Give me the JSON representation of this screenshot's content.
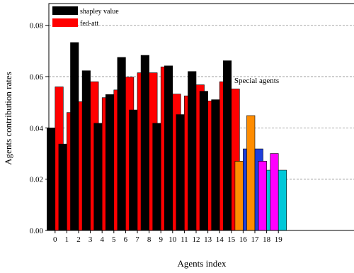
{
  "chart_data": {
    "type": "bar",
    "title": "",
    "xlabel": "Agents index",
    "ylabel": "Agents contribution rates",
    "ylim": [
      0,
      0.0885
    ],
    "yticks": [
      "0.00",
      "0.02",
      "0.04",
      "0.06",
      "0.08"
    ],
    "ytick_values": [
      0,
      0.02,
      0.04,
      0.06,
      0.08
    ],
    "categories": [
      "0",
      "1",
      "2",
      "3",
      "4",
      "5",
      "6",
      "7",
      "8",
      "9",
      "10",
      "11",
      "12",
      "13",
      "14",
      "15",
      "16",
      "17",
      "18",
      "19"
    ],
    "grid": "horizontal-dashed",
    "legend_position": "top-left",
    "series": [
      {
        "name": "shapley value",
        "color": "#000000",
        "values": [
          0.04,
          0.0337,
          0.0733,
          0.0623,
          0.0418,
          0.053,
          0.0675,
          0.047,
          0.0683,
          0.0418,
          0.0642,
          0.0452,
          0.062,
          0.0543,
          0.051,
          0.0662,
          0.0318,
          0.0318,
          0.0235,
          0.0235
        ],
        "colors": [
          "#000000",
          "#000000",
          "#000000",
          "#000000",
          "#000000",
          "#000000",
          "#000000",
          "#000000",
          "#000000",
          "#000000",
          "#000000",
          "#000000",
          "#000000",
          "#000000",
          "#000000",
          "#000000",
          "#1f3fdc",
          "#1f3fdc",
          "#00c8d8",
          "#00c8d8"
        ]
      },
      {
        "name": "fed-att",
        "color": "#ff0000",
        "values": [
          0.056,
          0.046,
          0.0502,
          0.058,
          0.0518,
          0.0548,
          0.0598,
          0.0615,
          0.0615,
          0.0638,
          0.0532,
          0.0525,
          0.0568,
          0.0505,
          0.058,
          0.0552,
          0.027,
          0.0448,
          0.027,
          0.03
        ],
        "colors": [
          "#ff0000",
          "#ff0000",
          "#ff0000",
          "#ff0000",
          "#ff0000",
          "#ff0000",
          "#ff0000",
          "#ff0000",
          "#ff0000",
          "#ff0000",
          "#ff0000",
          "#ff0000",
          "#ff0000",
          "#ff0000",
          "#ff0000",
          "#ff0000",
          "#ff8c00",
          "#ff8c00",
          "#ff00ff",
          "#ff00ff"
        ]
      }
    ],
    "bar_order": [
      [
        0,
        1
      ],
      [
        0,
        1
      ],
      [
        0,
        1
      ],
      [
        0,
        1
      ],
      [
        0,
        1
      ],
      [
        0,
        1
      ],
      [
        0,
        1
      ],
      [
        0,
        1
      ],
      [
        0,
        1
      ],
      [
        0,
        1
      ],
      [
        0,
        1
      ],
      [
        0,
        1
      ],
      [
        0,
        1
      ],
      [
        0,
        1
      ],
      [
        0,
        1
      ],
      [
        0,
        1
      ],
      [
        1,
        0
      ],
      [
        1,
        0
      ],
      [
        1,
        0
      ],
      [
        1,
        0
      ]
    ],
    "annotations": [
      {
        "text": "Special agents",
        "category": "17",
        "y": 0.0465
      }
    ]
  }
}
